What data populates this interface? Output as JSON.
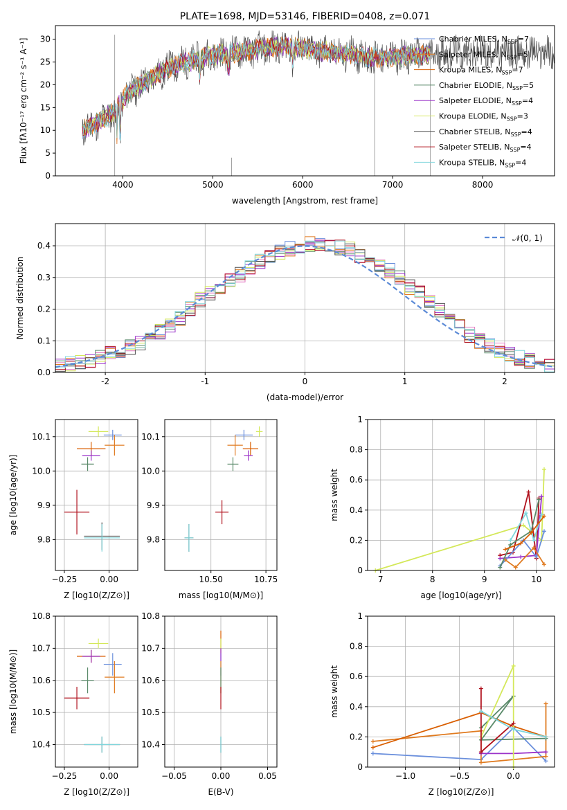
{
  "colors": [
    "#6a8fdc",
    "#e07b20",
    "#d95f02",
    "#5a8a6a",
    "#9b33c9",
    "#d4e85a",
    "#4d4d4d",
    "#b0101c",
    "#7fd6dc"
  ],
  "chart_data": [
    {
      "type": "line",
      "title": "PLATE=1698, MJD=53146, FIBERID=0408, z=0.071",
      "xlabel": "wavelength [Angstrom, rest frame]",
      "ylabel": "Flux [fλ10⁻¹⁷ erg cm⁻² s⁻¹ A⁻¹]",
      "xlim": [
        3250,
        8800
      ],
      "ylim": [
        0,
        33
      ],
      "xticks": [
        4000,
        5000,
        6000,
        7000,
        8000
      ],
      "yticks": [
        0,
        5,
        10,
        15,
        20,
        25,
        30
      ],
      "legend_position": "top-right",
      "legend": [
        "Chabrier MILES, N_SSP=7",
        "Salpeter MILES, N_SSP=5",
        "Kroupa MILES, N_SSP=7",
        "Chabrier ELODIE, N_SSP=5",
        "Salpeter ELODIE, N_SSP=4",
        "Kroupa ELODIE, N_SSP=3",
        "Chabrier STELIB, N_SSP=4",
        "Salpeter STELIB, N_SSP=4",
        "Kroupa STELIB, N_SSP=4"
      ],
      "continuum": {
        "x": [
          3550,
          3700,
          3900,
          4050,
          4200,
          4400,
          4600,
          4800,
          5000,
          5200,
          5400,
          5600,
          5800,
          6000,
          6200,
          6400,
          6600,
          6800,
          7000,
          7200,
          7400,
          7600
        ],
        "y": [
          10,
          11.5,
          14,
          18,
          20,
          22.5,
          24.5,
          25.5,
          26.5,
          27,
          27.5,
          28,
          28.5,
          28,
          27.5,
          27,
          26.5,
          26,
          26,
          26.5,
          26.5,
          27
        ]
      }
    },
    {
      "type": "step",
      "xlabel": "(data-model)/error",
      "ylabel": "Normed distribution",
      "xlim": [
        -2.5,
        2.5
      ],
      "ylim": [
        0,
        0.47
      ],
      "xticks": [
        -2,
        -1,
        0,
        1,
        2
      ],
      "yticks": [
        0.0,
        0.1,
        0.2,
        0.3,
        0.4
      ],
      "legend": [
        "𝒩(0, 1)"
      ],
      "legend_position": "top-right",
      "bin_edges_start": -2.5,
      "bin_width": 0.1,
      "base": [
        0.02,
        0.026,
        0.032,
        0.04,
        0.05,
        0.058,
        0.068,
        0.08,
        0.095,
        0.11,
        0.13,
        0.15,
        0.17,
        0.2,
        0.23,
        0.25,
        0.27,
        0.29,
        0.31,
        0.33,
        0.35,
        0.37,
        0.38,
        0.39,
        0.4,
        0.405,
        0.4,
        0.4,
        0.395,
        0.39,
        0.37,
        0.36,
        0.34,
        0.32,
        0.3,
        0.27,
        0.25,
        0.22,
        0.2,
        0.17,
        0.15,
        0.12,
        0.1,
        0.085,
        0.07,
        0.055,
        0.045,
        0.035,
        0.03,
        0.025
      ]
    },
    {
      "type": "scatter",
      "xlabel": "Z [log10(Z/Z⊙)]",
      "ylabel": "age  [log10(age/yr)]",
      "xlim": [
        -0.3,
        0.16
      ],
      "ylim": [
        9.71,
        10.15
      ],
      "xticks": [
        -0.25,
        0.0
      ],
      "xticklabels": [
        "−0.25",
        "0.00"
      ],
      "yticks": [
        9.8,
        9.9,
        10.0,
        10.1
      ],
      "yticklabels": [
        "9.8",
        "9.9",
        "10.0",
        "10.1"
      ],
      "points": [
        {
          "c": 0,
          "x": 0.02,
          "y": 10.105,
          "ex": 0.1,
          "ey": 0.03
        },
        {
          "c": 1,
          "x": 0.03,
          "y": 10.075,
          "ex": 0.11,
          "ey": 0.06
        },
        {
          "c": 2,
          "x": -0.1,
          "y": 10.065,
          "ex": 0.16,
          "ey": 0.04
        },
        {
          "c": 4,
          "x": -0.1,
          "y": 10.045,
          "ex": 0.1,
          "ey": 0.03
        },
        {
          "c": 3,
          "x": -0.12,
          "y": 10.02,
          "ex": 0.07,
          "ey": 0.04
        },
        {
          "c": 5,
          "x": -0.06,
          "y": 10.115,
          "ex": 0.11,
          "ey": 0.03
        },
        {
          "c": 7,
          "x": -0.18,
          "y": 9.88,
          "ex": 0.14,
          "ey": 0.13
        },
        {
          "c": 6,
          "x": -0.04,
          "y": 9.81,
          "ex": 0.2,
          "ey": 0.08
        },
        {
          "c": 8,
          "x": -0.04,
          "y": 9.805,
          "ex": 0.2,
          "ey": 0.08
        }
      ]
    },
    {
      "type": "scatter",
      "xlabel": "mass [log10(M/M⊙)]",
      "ylabel": "",
      "xlim": [
        10.29,
        10.8
      ],
      "ylim": [
        9.71,
        10.15
      ],
      "xticks": [
        10.5,
        10.75
      ],
      "xticklabels": [
        "10.50",
        "10.75"
      ],
      "yticks": [
        9.8,
        9.9,
        10.0,
        10.1
      ],
      "yticklabels": [
        "9.8",
        "9.9",
        "10.0",
        "10.1"
      ],
      "points": [
        {
          "c": 0,
          "x": 10.65,
          "y": 10.105,
          "ex": 0.08,
          "ey": 0.03
        },
        {
          "c": 1,
          "x": 10.61,
          "y": 10.075,
          "ex": 0.07,
          "ey": 0.06
        },
        {
          "c": 2,
          "x": 10.68,
          "y": 10.065,
          "ex": 0.07,
          "ey": 0.04
        },
        {
          "c": 4,
          "x": 10.67,
          "y": 10.045,
          "ex": 0.04,
          "ey": 0.03
        },
        {
          "c": 3,
          "x": 10.6,
          "y": 10.02,
          "ex": 0.05,
          "ey": 0.04
        },
        {
          "c": 5,
          "x": 10.72,
          "y": 10.115,
          "ex": 0.03,
          "ey": 0.03
        },
        {
          "c": 7,
          "x": 10.55,
          "y": 9.88,
          "ex": 0.06,
          "ey": 0.07
        },
        {
          "c": 6,
          "x": 10.4,
          "y": 9.805,
          "ex": 0.04,
          "ey": 0.08
        },
        {
          "c": 8,
          "x": 10.4,
          "y": 9.805,
          "ex": 0.04,
          "ey": 0.08
        }
      ]
    },
    {
      "type": "line",
      "xlabel": "age  [log10(age/yr)]",
      "ylabel": "mass weight",
      "xlim": [
        6.75,
        10.35
      ],
      "ylim": [
        0,
        1.0
      ],
      "xticks": [
        7,
        8,
        9,
        10
      ],
      "yticks": [
        0.0,
        0.2,
        0.4,
        0.6,
        0.8,
        1.0
      ],
      "series": [
        {
          "c": 5,
          "x": [
            6.9,
            9.75,
            10.1,
            10.15
          ],
          "y": [
            0.0,
            0.3,
            0.2,
            0.67
          ]
        },
        {
          "c": 7,
          "x": [
            9.3,
            9.55,
            9.85,
            10.0,
            10.05
          ],
          "y": [
            0.1,
            0.12,
            0.52,
            0.08,
            0.48
          ]
        },
        {
          "c": 4,
          "x": [
            9.3,
            9.7,
            10.0,
            10.1
          ],
          "y": [
            0.08,
            0.09,
            0.1,
            0.49
          ]
        },
        {
          "c": 0,
          "x": [
            9.3,
            9.75,
            10.0,
            10.15
          ],
          "y": [
            0.03,
            0.2,
            0.09,
            0.26
          ]
        },
        {
          "c": 1,
          "x": [
            9.4,
            9.6,
            9.95,
            10.15
          ],
          "y": [
            0.07,
            0.02,
            0.15,
            0.04
          ]
        },
        {
          "c": 3,
          "x": [
            9.3,
            9.5,
            9.9,
            10.05
          ],
          "y": [
            0.02,
            0.17,
            0.26,
            0.47
          ]
        },
        {
          "c": 8,
          "x": [
            9.5,
            9.8,
            9.95,
            10.1
          ],
          "y": [
            0.2,
            0.38,
            0.2,
            0.37
          ]
        },
        {
          "c": 2,
          "x": [
            9.4,
            9.7,
            9.9,
            10.15
          ],
          "y": [
            0.14,
            0.18,
            0.25,
            0.36
          ]
        }
      ]
    },
    {
      "type": "scatter",
      "xlabel": "Z [log10(Z/Z⊙)]",
      "ylabel": "mass [log10(M/M⊙)]",
      "xlim": [
        -0.3,
        0.16
      ],
      "ylim": [
        10.33,
        10.8
      ],
      "xticks": [
        -0.25,
        0.0
      ],
      "xticklabels": [
        "−0.25",
        "0.00"
      ],
      "yticks": [
        10.4,
        10.5,
        10.6,
        10.7,
        10.8
      ],
      "yticklabels": [
        "10.4",
        "10.5",
        "10.6",
        "10.7",
        "10.8"
      ],
      "points": [
        {
          "c": 0,
          "x": 0.02,
          "y": 10.65,
          "ex": 0.1,
          "ey": 0.07
        },
        {
          "c": 1,
          "x": 0.03,
          "y": 10.61,
          "ex": 0.11,
          "ey": 0.1
        },
        {
          "c": 2,
          "x": -0.1,
          "y": 10.675,
          "ex": 0.16,
          "ey": 0.04
        },
        {
          "c": 4,
          "x": -0.1,
          "y": 10.675,
          "ex": 0.1,
          "ey": 0.04
        },
        {
          "c": 3,
          "x": -0.12,
          "y": 10.6,
          "ex": 0.07,
          "ey": 0.08
        },
        {
          "c": 5,
          "x": -0.06,
          "y": 10.715,
          "ex": 0.11,
          "ey": 0.03
        },
        {
          "c": 7,
          "x": -0.18,
          "y": 10.545,
          "ex": 0.14,
          "ey": 0.07
        },
        {
          "c": 6,
          "x": -0.04,
          "y": 10.4,
          "ex": 0.2,
          "ey": 0.05
        },
        {
          "c": 8,
          "x": -0.04,
          "y": 10.4,
          "ex": 0.2,
          "ey": 0.05
        }
      ]
    },
    {
      "type": "scatter",
      "xlabel": "E(B-V)",
      "ylabel": "",
      "xlim": [
        -0.06,
        0.06
      ],
      "ylim": [
        10.33,
        10.8
      ],
      "xticks": [
        -0.05,
        0.0,
        0.05
      ],
      "xticklabels": [
        "−0.05",
        "0.00",
        "0.05"
      ],
      "yticks": [
        10.4,
        10.5,
        10.6,
        10.7,
        10.8
      ],
      "yticklabels": [
        "10.4",
        "10.5",
        "10.6",
        "10.7",
        "10.8"
      ],
      "points": [
        {
          "c": 0,
          "x": 0.0,
          "y": 10.65,
          "ex": 0,
          "ey": 0.07
        },
        {
          "c": 1,
          "x": 0.0,
          "y": 10.61,
          "ex": 0,
          "ey": 0.1
        },
        {
          "c": 2,
          "x": 0.0,
          "y": 10.72,
          "ex": 0,
          "ey": 0.07
        },
        {
          "c": 4,
          "x": 0.0,
          "y": 10.68,
          "ex": 0,
          "ey": 0.04
        },
        {
          "c": 3,
          "x": 0.0,
          "y": 10.6,
          "ex": 0,
          "ey": 0.08
        },
        {
          "c": 5,
          "x": 0.0,
          "y": 10.715,
          "ex": 0,
          "ey": 0.03
        },
        {
          "c": 7,
          "x": 0.0,
          "y": 10.545,
          "ex": 0,
          "ey": 0.07
        },
        {
          "c": 6,
          "x": 0.0,
          "y": 10.4,
          "ex": 0,
          "ey": 0.05
        },
        {
          "c": 8,
          "x": 0.0,
          "y": 10.4,
          "ex": 0,
          "ey": 0.05
        }
      ]
    },
    {
      "type": "line",
      "xlabel": "Z [log10(Z/Z⊙)]",
      "ylabel": "mass weight",
      "xlim": [
        -1.35,
        0.38
      ],
      "ylim": [
        0,
        1.0
      ],
      "xticks": [
        -1.0,
        -0.5,
        0.0
      ],
      "xticklabels": [
        "−1.0",
        "−0.5",
        "0.0"
      ],
      "yticks": [
        0.0,
        0.2,
        0.4,
        0.6,
        0.8,
        1.0
      ],
      "series": [
        {
          "c": 0,
          "x": [
            -1.3,
            -0.3,
            0.0,
            0.3
          ],
          "y": [
            0.09,
            0.05,
            0.26,
            0.04
          ]
        },
        {
          "c": 1,
          "x": [
            -1.3,
            -0.3,
            -0.3,
            0.3,
            0.3
          ],
          "y": [
            0.17,
            0.24,
            0.03,
            0.07,
            0.42
          ]
        },
        {
          "c": 2,
          "x": [
            -1.3,
            -0.3,
            0.0,
            0.3
          ],
          "y": [
            0.13,
            0.36,
            0.27,
            0.2
          ]
        },
        {
          "c": 3,
          "x": [
            -0.3,
            0.0,
            -0.3,
            0.3
          ],
          "y": [
            0.26,
            0.47,
            0.18,
            0.19
          ]
        },
        {
          "c": 4,
          "x": [
            -0.3,
            0.0,
            0.3
          ],
          "y": [
            0.09,
            0.09,
            0.1
          ]
        },
        {
          "c": 5,
          "x": [
            -0.3,
            0.0,
            0.0
          ],
          "y": [
            0.2,
            0.67,
            0.0
          ]
        },
        {
          "c": 7,
          "x": [
            -0.3,
            -0.3,
            0.0
          ],
          "y": [
            0.52,
            0.1,
            0.29
          ]
        },
        {
          "c": 8,
          "x": [
            -0.3,
            0.0,
            0.3
          ],
          "y": [
            0.37,
            0.25,
            0.2
          ]
        }
      ]
    }
  ]
}
